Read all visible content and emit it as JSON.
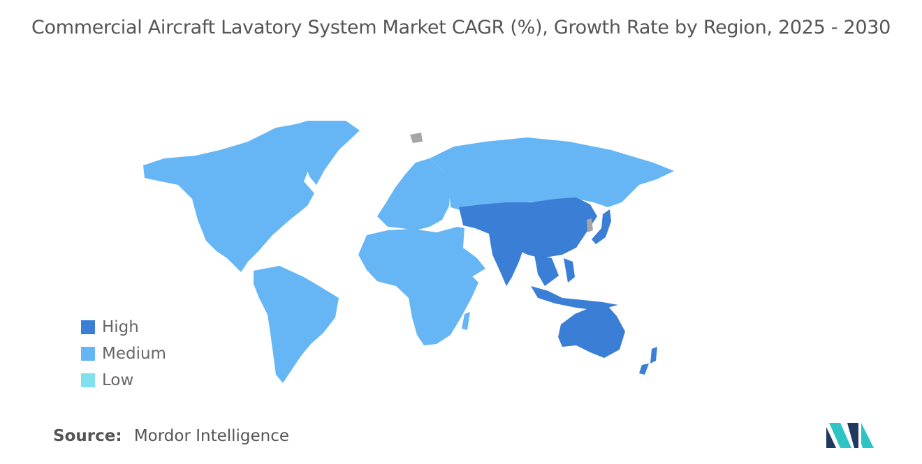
{
  "title": "Commercial Aircraft Lavatory System Market CAGR (%), Growth Rate by Region, 2025 - 2030",
  "legend": [
    {
      "label": "High",
      "color": "#3a7fd5"
    },
    {
      "label": "Medium",
      "color": "#66b6f6"
    },
    {
      "label": "Low",
      "color": "#7fe0ee"
    }
  ],
  "regions": [
    {
      "name": "North America",
      "level": "Medium"
    },
    {
      "name": "South America",
      "level": "Medium"
    },
    {
      "name": "Europe",
      "level": "Medium"
    },
    {
      "name": "Africa",
      "level": "Medium"
    },
    {
      "name": "Middle East",
      "level": "Medium"
    },
    {
      "name": "Russia",
      "level": "Medium"
    },
    {
      "name": "China",
      "level": "High"
    },
    {
      "name": "India",
      "level": "High"
    },
    {
      "name": "Southeast Asia",
      "level": "High"
    },
    {
      "name": "Japan",
      "level": "High"
    },
    {
      "name": "Australia",
      "level": "High"
    },
    {
      "name": "New Zealand",
      "level": "High"
    }
  ],
  "source": {
    "label": "Source:",
    "value": "Mordor Intelligence"
  },
  "logo_icon": "mordor-intelligence-logo-icon",
  "no_data_color": "#a6a6a6"
}
